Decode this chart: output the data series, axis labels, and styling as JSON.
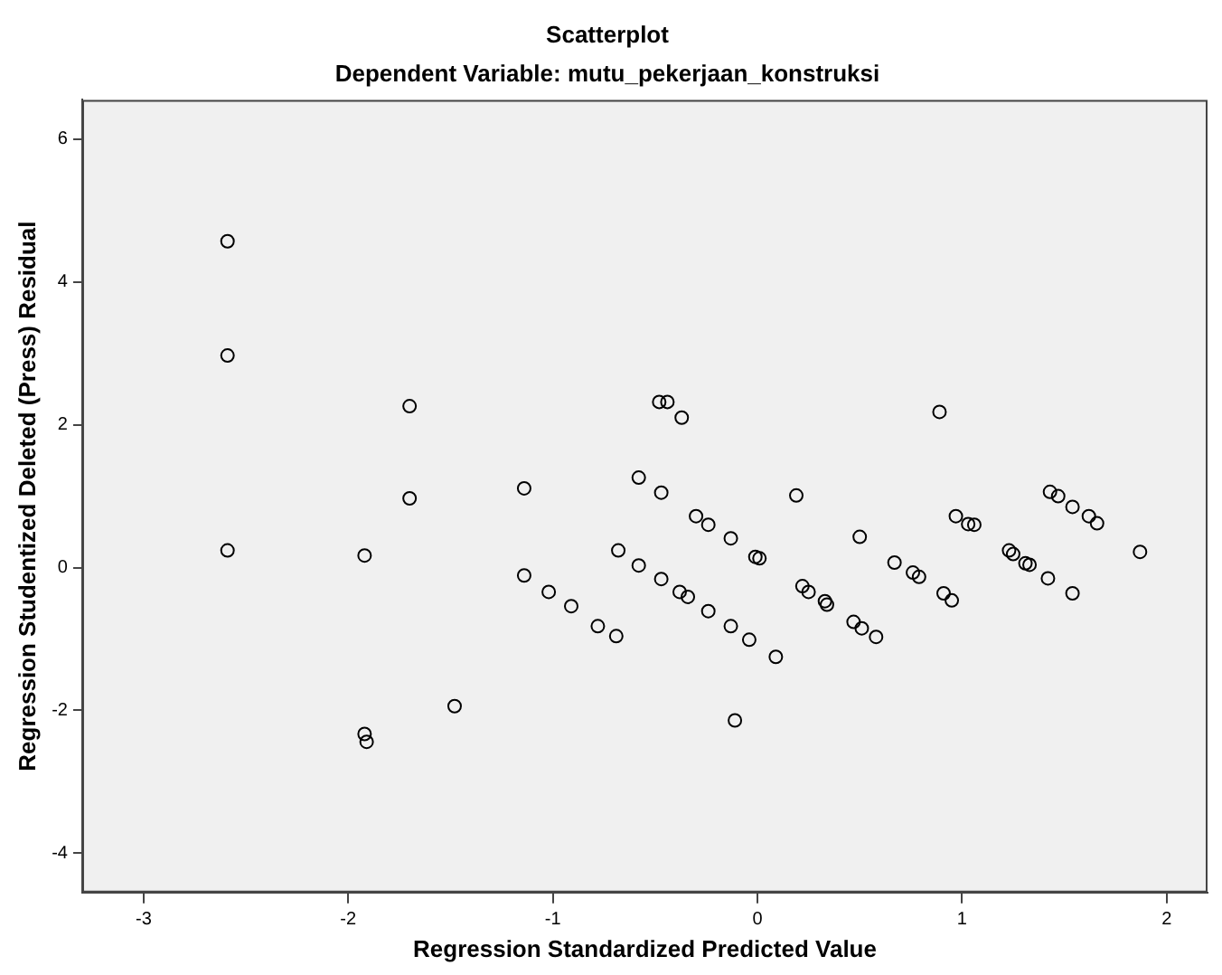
{
  "chart_data": {
    "type": "scatter",
    "title": "Scatterplot",
    "subtitle": "Dependent Variable: mutu_pekerjaan_konstruksi",
    "xlabel": "Regression Standardized Predicted Value",
    "ylabel": "Regression Studentized Deleted (Press) Residual",
    "xlim": [
      -3.3,
      2.2
    ],
    "ylim": [
      -4.55,
      6.55
    ],
    "xticks": [
      -3,
      -2,
      -1,
      0,
      1,
      2
    ],
    "yticks": [
      -4,
      -2,
      0,
      2,
      4,
      6
    ],
    "grid": false,
    "legend": false,
    "marker": "circle",
    "series": [
      {
        "color": "#000000",
        "x": [
          -2.59,
          -2.59,
          -2.59,
          -1.92,
          -1.92,
          -1.91,
          -1.7,
          -1.7,
          -1.48,
          -1.14,
          -1.14,
          -1.02,
          -0.91,
          -0.78,
          -0.69,
          -0.68,
          -0.58,
          -0.58,
          -0.47,
          -0.47,
          -0.48,
          -0.44,
          -0.37,
          -0.38,
          -0.34,
          -0.3,
          -0.24,
          -0.24,
          -0.13,
          -0.13,
          -0.04,
          -0.11,
          -0.01,
          0.01,
          0.09,
          0.19,
          0.22,
          0.25,
          0.33,
          0.34,
          0.5,
          0.47,
          0.51,
          0.58,
          0.67,
          0.76,
          0.79,
          0.89,
          0.91,
          0.95,
          0.97,
          1.03,
          1.06,
          1.23,
          1.25,
          1.31,
          1.33,
          1.42,
          1.43,
          1.47,
          1.54,
          1.54,
          1.62,
          1.66,
          1.87
        ],
        "values": [
          4.57,
          2.97,
          0.24,
          0.17,
          -2.33,
          -2.44,
          2.26,
          0.97,
          -1.94,
          1.11,
          -0.11,
          -0.34,
          -0.54,
          -0.82,
          -0.96,
          0.24,
          1.26,
          0.03,
          1.05,
          -0.16,
          2.32,
          2.32,
          2.1,
          -0.34,
          -0.41,
          0.72,
          0.6,
          -0.61,
          0.41,
          -0.82,
          -1.01,
          -2.14,
          0.15,
          0.13,
          -1.25,
          1.01,
          -0.26,
          -0.34,
          -0.47,
          -0.52,
          0.43,
          -0.76,
          -0.85,
          -0.97,
          0.07,
          -0.07,
          -0.13,
          2.18,
          -0.36,
          -0.46,
          0.72,
          0.61,
          0.6,
          0.24,
          0.19,
          0.06,
          0.04,
          -0.15,
          1.06,
          1.0,
          -0.36,
          0.85,
          0.72,
          0.62,
          0.22
        ]
      }
    ]
  }
}
